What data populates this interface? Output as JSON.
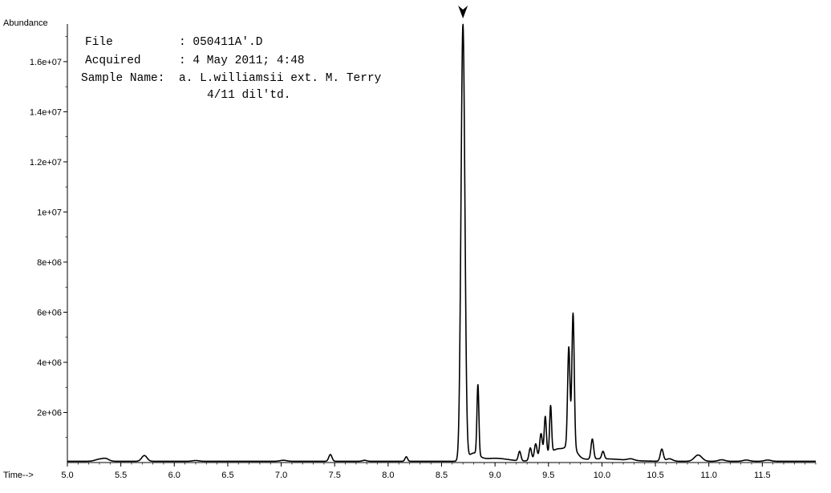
{
  "header": {
    "file_label": "File",
    "file_value": ": 050411A'.D",
    "acquired_label": "Acquired",
    "acquired_value": ": 4 May 2011; 4:48",
    "sample_label": "Sample Name:",
    "sample_value": "a. L.williamsii ext. M. Terry",
    "sample_value_2": "4/11 dil'td."
  },
  "chart_data": {
    "type": "line",
    "ylabel": "Abundance",
    "xlabel": "Time-->",
    "xlim": [
      5.0,
      12.0
    ],
    "ylim": [
      0,
      17500000
    ],
    "x_ticks": [
      5.0,
      5.5,
      6.0,
      6.5,
      7.0,
      7.5,
      8.0,
      8.5,
      9.0,
      9.5,
      10.0,
      10.5,
      11.0,
      11.5
    ],
    "x_tick_labels": [
      "5.0",
      "5.5",
      "6.0",
      "6.5",
      "7.0",
      "7.5",
      "8.0",
      "8.5",
      "9.0",
      "9.5",
      "10.0",
      "10.5",
      "11.0",
      "11.5"
    ],
    "y_ticks": [
      2000000,
      4000000,
      6000000,
      8000000,
      10000000,
      12000000,
      14000000,
      16000000
    ],
    "y_tick_labels": [
      "2e+06",
      "4e+06",
      "6e+06",
      "8e+06",
      "1e+07",
      "1.2e+07",
      "1.4e+07",
      "1.6e+07"
    ],
    "marker_time": 8.7,
    "baseline": 50000,
    "series": [
      {
        "peaks": [
          {
            "t": 5.3,
            "h": 80000,
            "w": 0.04
          },
          {
            "t": 5.36,
            "h": 90000,
            "w": 0.03
          },
          {
            "t": 5.72,
            "h": 230000,
            "w": 0.025
          },
          {
            "t": 6.2,
            "h": 30000,
            "w": 0.03
          },
          {
            "t": 7.02,
            "h": 40000,
            "w": 0.03
          },
          {
            "t": 7.46,
            "h": 270000,
            "w": 0.015
          },
          {
            "t": 7.78,
            "h": 40000,
            "w": 0.02
          },
          {
            "t": 8.17,
            "h": 180000,
            "w": 0.012
          },
          {
            "t": 8.7,
            "h": 17400000,
            "w": 0.018
          },
          {
            "t": 8.84,
            "h": 2800000,
            "w": 0.009
          },
          {
            "t": 8.8,
            "h": 300000,
            "w": 0.05
          },
          {
            "t": 9.0,
            "h": 120000,
            "w": 0.12
          },
          {
            "t": 9.23,
            "h": 380000,
            "w": 0.012
          },
          {
            "t": 9.33,
            "h": 500000,
            "w": 0.012
          },
          {
            "t": 9.38,
            "h": 600000,
            "w": 0.012
          },
          {
            "t": 9.43,
            "h": 900000,
            "w": 0.012
          },
          {
            "t": 9.47,
            "h": 1500000,
            "w": 0.01
          },
          {
            "t": 9.52,
            "h": 1850000,
            "w": 0.009
          },
          {
            "t": 9.5,
            "h": 300000,
            "w": 0.08
          },
          {
            "t": 9.6,
            "h": 300000,
            "w": 0.05
          },
          {
            "t": 9.69,
            "h": 3900000,
            "w": 0.011
          },
          {
            "t": 9.73,
            "h": 5300000,
            "w": 0.011
          },
          {
            "t": 9.71,
            "h": 600000,
            "w": 0.05
          },
          {
            "t": 9.91,
            "h": 800000,
            "w": 0.012
          },
          {
            "t": 10.01,
            "h": 300000,
            "w": 0.012
          },
          {
            "t": 10.0,
            "h": 100000,
            "w": 0.2
          },
          {
            "t": 10.27,
            "h": 60000,
            "w": 0.03
          },
          {
            "t": 10.56,
            "h": 480000,
            "w": 0.014
          },
          {
            "t": 10.63,
            "h": 100000,
            "w": 0.03
          },
          {
            "t": 10.9,
            "h": 250000,
            "w": 0.035
          },
          {
            "t": 11.12,
            "h": 60000,
            "w": 0.03
          },
          {
            "t": 11.35,
            "h": 50000,
            "w": 0.03
          },
          {
            "t": 11.55,
            "h": 50000,
            "w": 0.03
          }
        ]
      }
    ],
    "grid": false,
    "line_color": "#000000"
  }
}
